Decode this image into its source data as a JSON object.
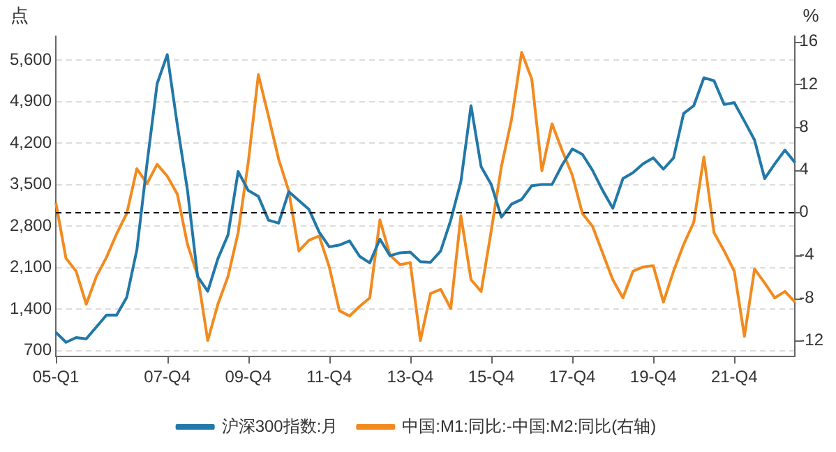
{
  "chart_data": {
    "type": "line",
    "ylabel": "点",
    "y2label": "%",
    "categories": [
      "05-Q1",
      null,
      null,
      null,
      null,
      null,
      null,
      null,
      null,
      null,
      null,
      "07-Q4",
      null,
      null,
      null,
      null,
      null,
      null,
      null,
      "09-Q4",
      null,
      null,
      null,
      null,
      null,
      null,
      null,
      "11-Q4",
      null,
      null,
      null,
      null,
      null,
      null,
      null,
      "13-Q4",
      null,
      null,
      null,
      null,
      null,
      null,
      null,
      "15-Q4",
      null,
      null,
      null,
      null,
      null,
      null,
      null,
      "17-Q4",
      null,
      null,
      null,
      null,
      null,
      null,
      null,
      "19-Q4",
      null,
      null,
      null,
      null,
      null,
      null,
      null,
      "21-Q4",
      null,
      null,
      null,
      null,
      null,
      null
    ],
    "ylim": [
      600,
      6000
    ],
    "yticks": [
      {
        "value": 700,
        "label": "700"
      },
      {
        "value": 1400,
        "label": "1,400"
      },
      {
        "value": 2100,
        "label": "2,100"
      },
      {
        "value": 2800,
        "label": "2,800"
      },
      {
        "value": 3500,
        "label": "3,500"
      },
      {
        "value": 4200,
        "label": "4,200"
      },
      {
        "value": 4900,
        "label": "4,900"
      },
      {
        "value": 5600,
        "label": "5,600"
      }
    ],
    "y2lim": [
      -13.5,
      16.5
    ],
    "y2ticks": [
      -12,
      -8,
      -4,
      0,
      4,
      8,
      12,
      16
    ],
    "grid": "y",
    "legend": "bottom",
    "marker": "none",
    "line_style": "solid",
    "ref_lines": [
      {
        "axis": "y2",
        "value": 0,
        "label": null,
        "color": "#000000",
        "line_style": "dashed"
      }
    ],
    "series": [
      {
        "name": "沪深300指数:月",
        "color": "#2278a8",
        "values": [
          1010,
          840,
          920,
          900,
          1100,
          1300,
          1300,
          1600,
          2400,
          3850,
          5200,
          5690,
          4500,
          3400,
          1950,
          1700,
          2250,
          2650,
          3720,
          3400,
          3300,
          2900,
          2850,
          3380,
          3230,
          3080,
          2700,
          2450,
          2480,
          2550,
          2290,
          2180,
          2580,
          2300,
          2350,
          2360,
          2200,
          2190,
          2380,
          2900,
          3550,
          4830,
          3800,
          3500,
          2950,
          3170,
          3250,
          3480,
          3500,
          3500,
          3830,
          4100,
          4010,
          3740,
          3400,
          3100,
          3600,
          3700,
          3850,
          3950,
          3760,
          3950,
          4700,
          4830,
          5300,
          5250,
          4850,
          4880,
          4570,
          4250,
          3600,
          3850,
          4080,
          3870
        ]
      },
      {
        "name": "中国:M1:同比:-中国:M2:同比(右轴)",
        "color": "#f28a1e",
        "axis": "y2",
        "values": [
          0.9,
          -4.3,
          -5.5,
          -8.6,
          -6.0,
          -4.2,
          -2.0,
          -0.1,
          4.1,
          2.7,
          4.5,
          3.4,
          1.7,
          -3.0,
          -5.9,
          -12.0,
          -8.6,
          -6.0,
          -1.9,
          4.7,
          12.9,
          9.0,
          5.0,
          2.0,
          -3.6,
          -2.6,
          -2.2,
          -5.1,
          -9.2,
          -9.7,
          -8.8,
          -8.0,
          -0.7,
          -4.0,
          -4.9,
          -4.7,
          -12.0,
          -7.6,
          -7.2,
          -9.0,
          -0.3,
          -6.3,
          -7.4,
          -1.7,
          4.3,
          8.7,
          15.0,
          12.5,
          3.9,
          8.3,
          5.8,
          3.5,
          -0.1,
          -1.3,
          -3.8,
          -6.3,
          -8.0,
          -5.5,
          -5.1,
          -5.0,
          -8.4,
          -5.5,
          -3.0,
          -0.9,
          5.2,
          -1.9,
          -3.6,
          -5.5,
          -11.6,
          -5.3,
          -6.6,
          -8.0,
          -7.4,
          -8.4
        ]
      }
    ]
  }
}
